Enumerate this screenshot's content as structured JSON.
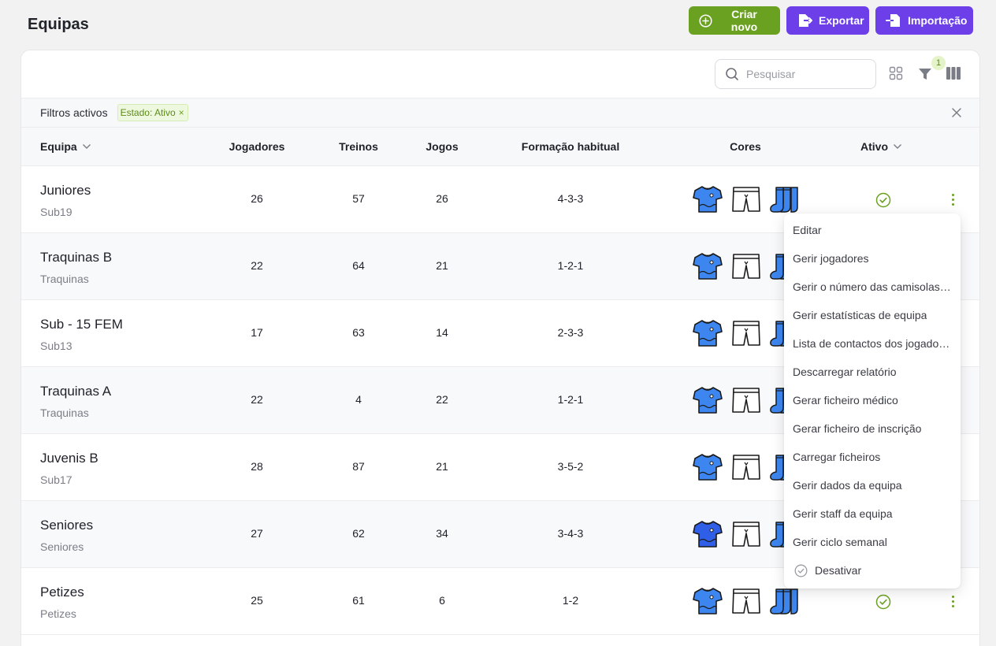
{
  "page": {
    "title": "Equipas"
  },
  "actions": {
    "create": "Criar novo",
    "export": "Exportar",
    "import": "Importação"
  },
  "toolbar": {
    "search_placeholder": "Pesquisar",
    "filter_count": "1"
  },
  "filters": {
    "label": "Filtros activos",
    "chip": "Estado: Ativo",
    "chip_close": "×"
  },
  "columns": {
    "team": "Equipa",
    "players": "Jogadores",
    "trainings": "Treinos",
    "games": "Jogos",
    "formation": "Formação habitual",
    "colors": "Cores",
    "active": "Ativo"
  },
  "colors": {
    "accent_green": "#6aa121",
    "accent_purple": "#6c3fe8",
    "kit_blue": "#3d86f0",
    "kit_dark_blue": "#2f5fe6"
  },
  "rows": [
    {
      "name": "Juniores",
      "category": "Sub19",
      "players": "26",
      "trainings": "57",
      "games": "26",
      "formation": "4-3-3"
    },
    {
      "name": "Traquinas B",
      "category": "Traquinas",
      "players": "22",
      "trainings": "64",
      "games": "21",
      "formation": "1-2-1"
    },
    {
      "name": "Sub - 15 FEM",
      "category": "Sub13",
      "players": "17",
      "trainings": "63",
      "games": "14",
      "formation": "2-3-3"
    },
    {
      "name": "Traquinas A",
      "category": "Traquinas",
      "players": "22",
      "trainings": "4",
      "games": "22",
      "formation": "1-2-1"
    },
    {
      "name": "Juvenis B",
      "category": "Sub17",
      "players": "28",
      "trainings": "87",
      "games": "21",
      "formation": "3-5-2"
    },
    {
      "name": "Seniores",
      "category": "Seniores",
      "players": "27",
      "trainings": "62",
      "games": "34",
      "formation": "3-4-3"
    },
    {
      "name": "Petizes",
      "category": "Petizes",
      "players": "25",
      "trainings": "61",
      "games": "6",
      "formation": "1-2"
    }
  ],
  "menu": {
    "items": [
      "Editar",
      "Gerir jogadores",
      "Gerir o número das camisolas dos jogadores",
      "Gerir estatísticas de equipa",
      "Lista de contactos dos jogadores",
      "Descarregar relatório",
      "Gerar ficheiro médico",
      "Gerar ficheiro de inscrição",
      "Carregar ficheiros",
      "Gerir dados da equipa",
      "Gerir staff da equipa",
      "Gerir ciclo semanal"
    ],
    "deactivate": "Desativar"
  }
}
